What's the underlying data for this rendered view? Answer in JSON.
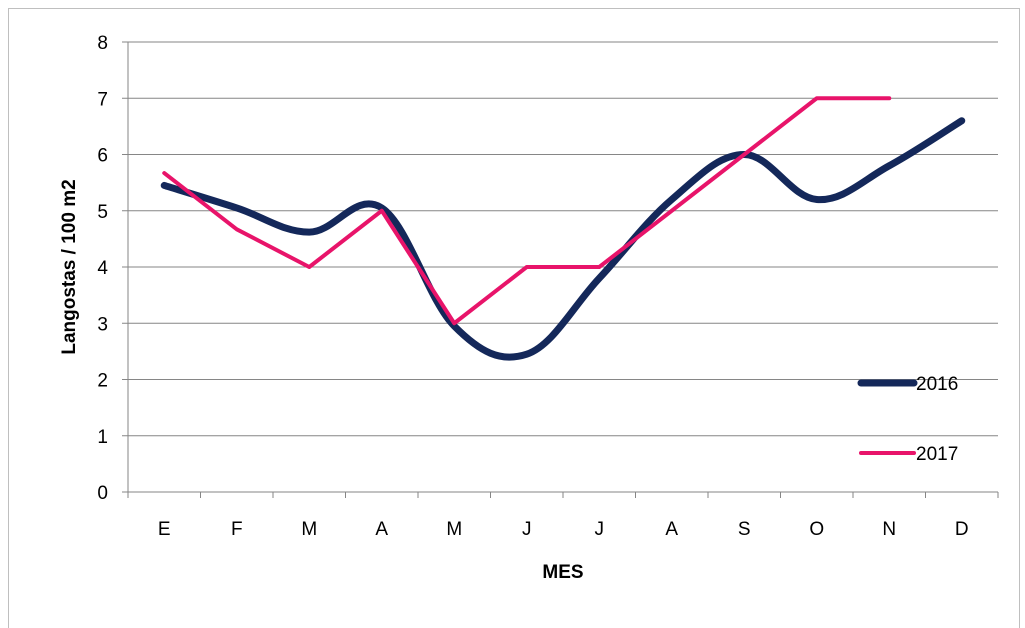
{
  "chart_data": {
    "type": "line",
    "categories": [
      "E",
      "F",
      "M",
      "A",
      "M",
      "J",
      "J",
      "A",
      "S",
      "O",
      "N",
      "D"
    ],
    "series": [
      {
        "name": "2016",
        "color": "#14285a",
        "smooth": true,
        "values": [
          5.45,
          5.05,
          4.62,
          5.05,
          2.95,
          2.45,
          3.8,
          5.2,
          6.0,
          5.2,
          5.8,
          6.6
        ]
      },
      {
        "name": "2017",
        "color": "#e8146a",
        "smooth": false,
        "values": [
          5.67,
          4.67,
          4.0,
          5.0,
          3.0,
          4.0,
          4.0,
          5.0,
          6.0,
          7.0,
          7.0,
          null
        ]
      }
    ],
    "yticks": [
      "0",
      "1",
      "2",
      "3",
      "4",
      "5",
      "6",
      "7",
      "8"
    ],
    "ylim": [
      0,
      8
    ],
    "xlabel": "MES",
    "ylabel": "Langostas / 100 m2",
    "grid": true,
    "legend_position": "right"
  }
}
